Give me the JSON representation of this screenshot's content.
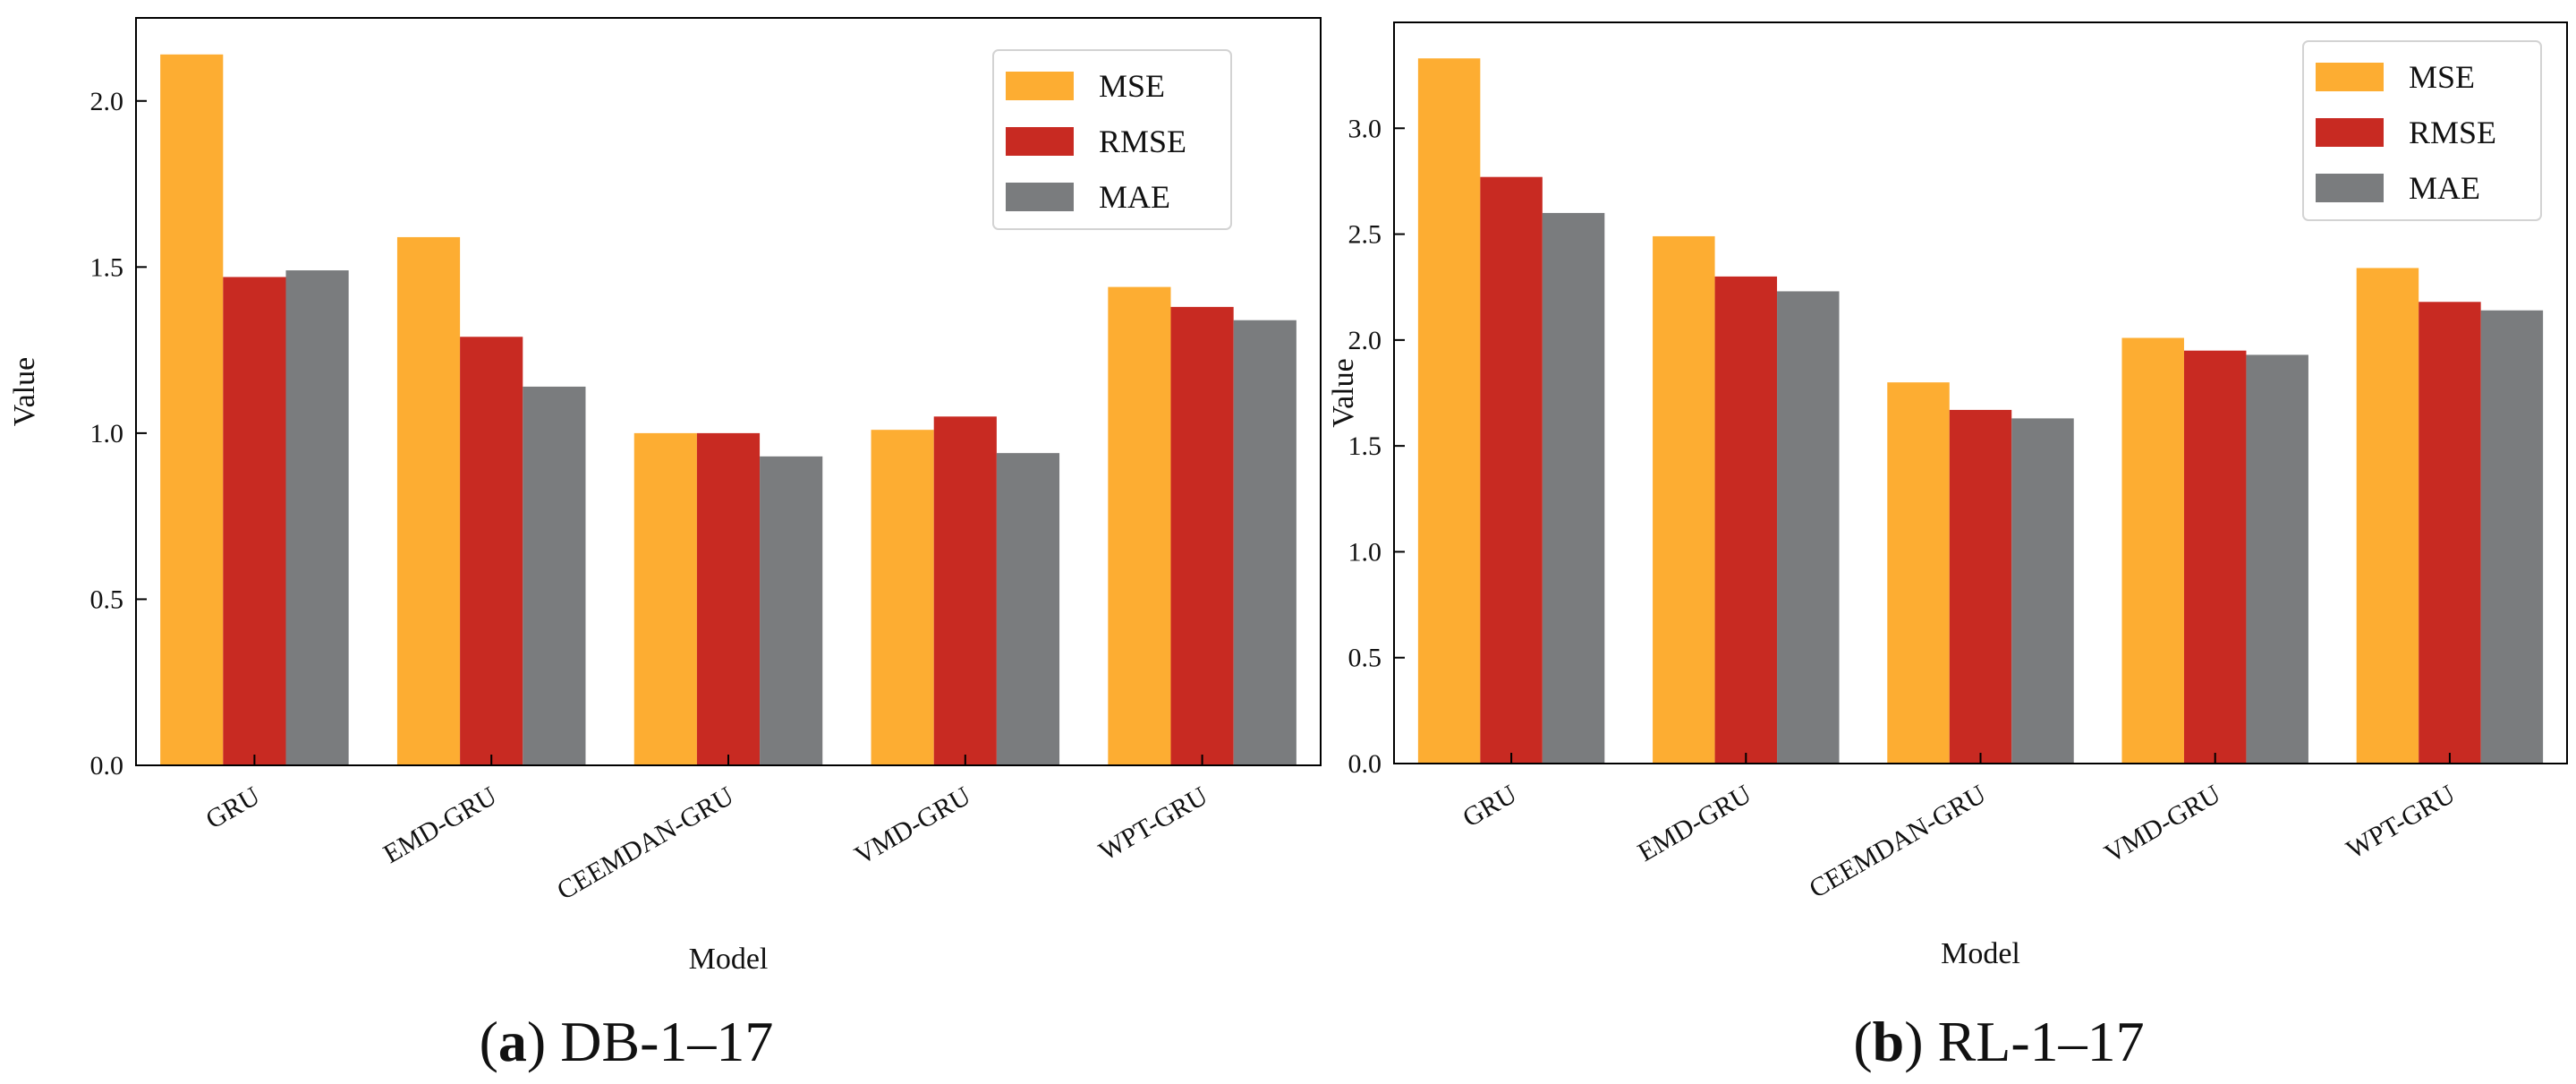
{
  "chart_data": [
    {
      "type": "bar",
      "caption_letter": "a",
      "caption_text": "DB-1–17",
      "xlabel": "Model",
      "ylabel": "Value",
      "ylim": [
        0,
        2.25
      ],
      "yticks": [
        0.0,
        0.5,
        1.0,
        1.5,
        2.0
      ],
      "ytick_labels": [
        "0.0",
        "0.5",
        "1.0",
        "1.5",
        "2.0"
      ],
      "categories": [
        "GRU",
        "EMD-GRU",
        "CEEMDAN-GRU",
        "VMD-GRU",
        "WPT-GRU"
      ],
      "legend_position": "top-right",
      "series": [
        {
          "name": "MSE",
          "color": "#FDAD32",
          "values": [
            2.14,
            1.59,
            1.0,
            1.01,
            1.44
          ]
        },
        {
          "name": "RMSE",
          "color": "#C82A22",
          "values": [
            1.47,
            1.29,
            1.0,
            1.05,
            1.38
          ]
        },
        {
          "name": "MAE",
          "color": "#7A7C7E",
          "values": [
            1.49,
            1.14,
            0.93,
            0.94,
            1.34
          ]
        }
      ]
    },
    {
      "type": "bar",
      "caption_letter": "b",
      "caption_text": "RL-1–17",
      "xlabel": "Model",
      "ylabel": "Value",
      "ylim": [
        0,
        3.5
      ],
      "yticks": [
        0.0,
        0.5,
        1.0,
        1.5,
        2.0,
        2.5,
        3.0
      ],
      "ytick_labels": [
        "0.0",
        "0.5",
        "1.0",
        "1.5",
        "2.0",
        "2.5",
        "3.0"
      ],
      "categories": [
        "GRU",
        "EMD-GRU",
        "CEEMDAN-GRU",
        "VMD-GRU",
        "WPT-GRU"
      ],
      "legend_position": "top-right",
      "series": [
        {
          "name": "MSE",
          "color": "#FDAD32",
          "values": [
            3.33,
            2.49,
            1.8,
            2.01,
            2.34
          ]
        },
        {
          "name": "RMSE",
          "color": "#C82A22",
          "values": [
            2.77,
            2.3,
            1.67,
            1.95,
            2.18
          ]
        },
        {
          "name": "MAE",
          "color": "#7A7C7E",
          "values": [
            2.6,
            2.23,
            1.63,
            1.93,
            2.14
          ]
        }
      ]
    }
  ]
}
